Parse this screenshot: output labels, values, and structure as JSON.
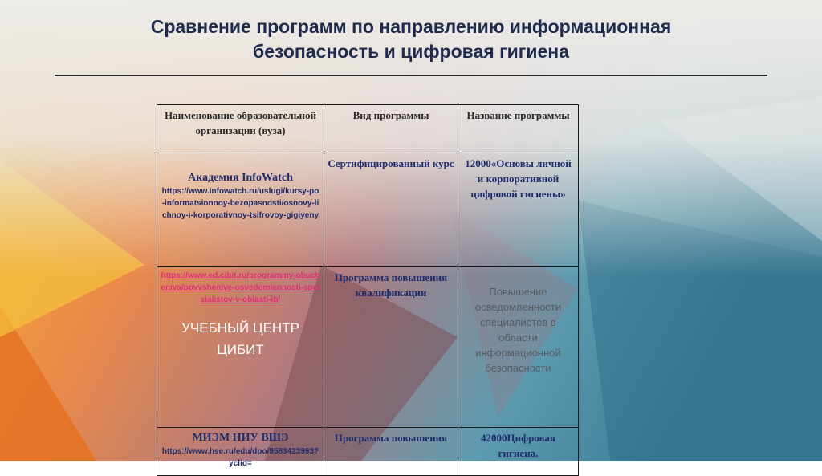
{
  "slide": {
    "title_line1": "Сравнение программ по направлению информационная",
    "title_line2": "безопасность и цифровая гигиена"
  },
  "table": {
    "headers": [
      "Наименование образовательной организации (вуза)",
      "Вид программы",
      "Название программы"
    ],
    "rows": [
      {
        "org": "Академия InfoWatch",
        "url": "https://www.infowatch.ru/uslugi/kursy-po-informatsionnoy-bezopasnosti/osnovy-lichnoy-i-korporativnoy-tsifrovoy-gigiyeny",
        "type": "Сертифицированный курс",
        "name": "12000«Основы личной и корпоративной цифровой гигиены»"
      },
      {
        "url": "https://www.ed.cibit.ru/programmy-obucheniya/povysheniye-osvedomlennosti-spetsialistov-v-oblasti-ib/",
        "org": "УЧЕБНЫЙ ЦЕНТР ЦИБИТ",
        "type": "Программа повышения квалификации",
        "name": "Повышение осведомленности специалистов в области информационной безопасности"
      },
      {
        "org": "МИЭМ НИУ ВШЭ",
        "url": "https://www.hse.ru/edu/dpo/9583423993?yclid=",
        "type": "Программа повышения",
        "name": "42000Цифровая гигиена."
      }
    ]
  }
}
